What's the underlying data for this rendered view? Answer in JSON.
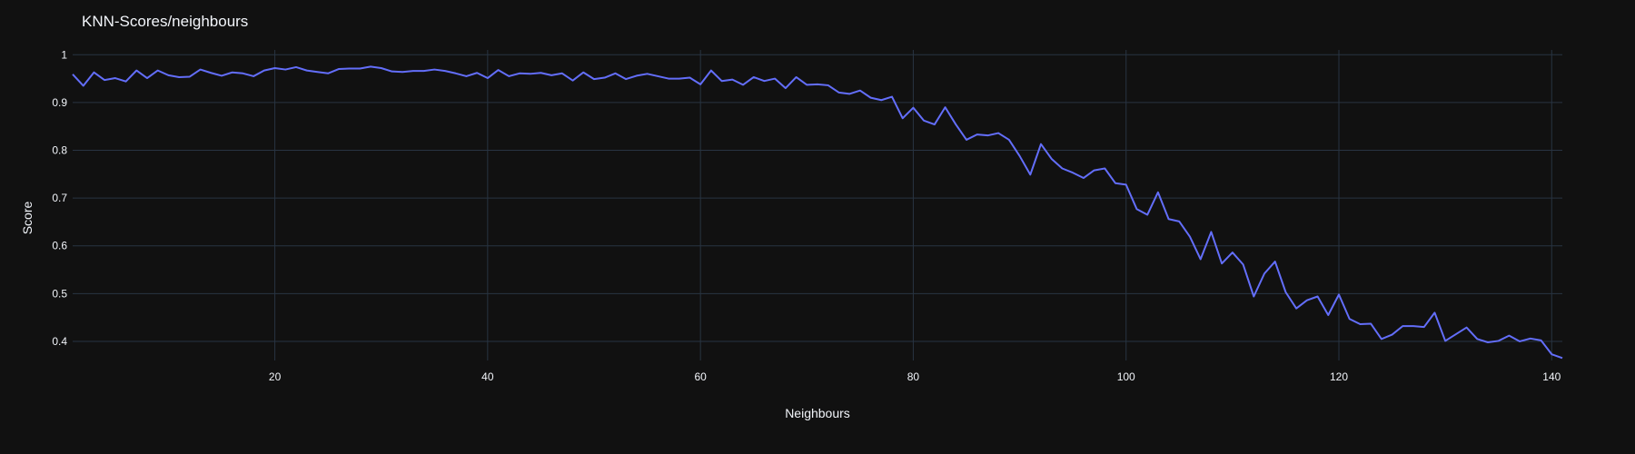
{
  "colors": {
    "background": "#111111",
    "grid": "#283442",
    "text": "#f2f5fa",
    "series": "#636efa"
  },
  "chart_data": {
    "type": "line",
    "title": "KNN-Scores/neighbours",
    "xlabel": "Neighbours",
    "ylabel": "Score",
    "xlim": [
      1,
      141
    ],
    "ylim": [
      0.36,
      1.01
    ],
    "grid": true,
    "x_ticks": [
      20,
      40,
      60,
      80,
      100,
      120,
      140
    ],
    "y_ticks": [
      0.4,
      0.5,
      0.6,
      0.7,
      0.8,
      0.9,
      1
    ],
    "y_tick_labels": [
      "0.4",
      "0.5",
      "0.6",
      "0.7",
      "0.8",
      "0.9",
      "1"
    ],
    "series": [
      {
        "x": [
          1,
          2,
          3,
          4,
          5,
          6,
          7,
          8,
          9,
          10,
          11,
          12,
          13,
          14,
          15,
          16,
          17,
          18,
          19,
          20,
          21,
          22,
          23,
          24,
          25,
          26,
          27,
          28,
          29,
          30,
          31,
          32,
          33,
          34,
          35,
          36,
          37,
          38,
          39,
          40,
          41,
          42,
          43,
          44,
          45,
          46,
          47,
          48,
          49,
          50,
          51,
          52,
          53,
          54,
          55,
          56,
          57,
          58,
          59,
          60,
          61,
          62,
          63,
          64,
          65,
          66,
          67,
          68,
          69,
          70,
          71,
          72,
          73,
          74,
          75,
          76,
          77,
          78,
          79,
          80,
          81,
          82,
          83,
          84,
          85,
          86,
          87,
          88,
          89,
          90,
          91,
          92,
          93,
          94,
          95,
          96,
          97,
          98,
          99,
          100,
          101,
          102,
          103,
          104,
          105,
          106,
          107,
          108,
          109,
          110,
          111,
          112,
          113,
          114,
          115,
          116,
          117,
          118,
          119,
          120,
          121,
          122,
          123,
          124,
          125,
          126,
          127,
          128,
          129,
          130,
          131,
          132,
          133,
          134,
          135,
          136,
          137,
          138,
          139,
          140,
          141
        ],
        "y": [
          0.959,
          0.935,
          0.963,
          0.947,
          0.951,
          0.944,
          0.967,
          0.951,
          0.967,
          0.957,
          0.953,
          0.954,
          0.969,
          0.962,
          0.956,
          0.963,
          0.961,
          0.955,
          0.967,
          0.972,
          0.969,
          0.974,
          0.967,
          0.964,
          0.961,
          0.97,
          0.971,
          0.971,
          0.975,
          0.972,
          0.965,
          0.964,
          0.966,
          0.966,
          0.969,
          0.966,
          0.961,
          0.955,
          0.962,
          0.951,
          0.968,
          0.955,
          0.961,
          0.96,
          0.962,
          0.957,
          0.961,
          0.946,
          0.963,
          0.949,
          0.952,
          0.961,
          0.949,
          0.956,
          0.96,
          0.955,
          0.95,
          0.95,
          0.952,
          0.938,
          0.967,
          0.945,
          0.948,
          0.937,
          0.953,
          0.945,
          0.95,
          0.93,
          0.953,
          0.937,
          0.938,
          0.936,
          0.921,
          0.918,
          0.925,
          0.91,
          0.905,
          0.912,
          0.867,
          0.889,
          0.862,
          0.854,
          0.89,
          0.854,
          0.822,
          0.833,
          0.831,
          0.836,
          0.822,
          0.788,
          0.749,
          0.813,
          0.782,
          0.762,
          0.753,
          0.742,
          0.758,
          0.762,
          0.731,
          0.728,
          0.677,
          0.665,
          0.712,
          0.656,
          0.651,
          0.619,
          0.572,
          0.629,
          0.563,
          0.586,
          0.561,
          0.494,
          0.542,
          0.567,
          0.503,
          0.469,
          0.486,
          0.494,
          0.455,
          0.498,
          0.447,
          0.436,
          0.437,
          0.405,
          0.414,
          0.432,
          0.432,
          0.43,
          0.46,
          0.401,
          0.415,
          0.429,
          0.405,
          0.398,
          0.401,
          0.412,
          0.4,
          0.406,
          0.402,
          0.373,
          0.365
        ]
      }
    ]
  }
}
